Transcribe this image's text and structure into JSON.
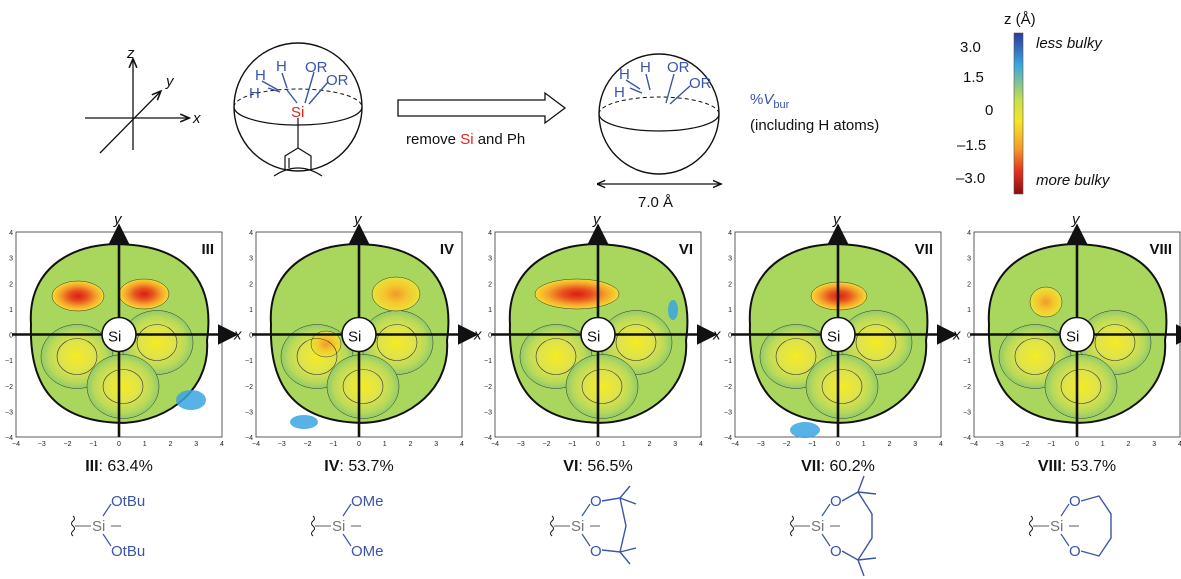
{
  "top": {
    "axes": {
      "x": "x",
      "y": "y",
      "z": "z"
    },
    "sphere1": {
      "h_labels": [
        "H",
        "H",
        "H"
      ],
      "or_labels": [
        "OR",
        "OR"
      ],
      "si": "Si"
    },
    "arrow": {
      "prefix": "remove ",
      "si": "Si",
      "suffix": " and Ph"
    },
    "sphere2": {
      "h_labels": [
        "H",
        "H",
        "H"
      ],
      "or_labels": [
        "OR",
        "OR"
      ],
      "dimension": "7.0 Å"
    },
    "vbur": {
      "pct": "%",
      "v": "V",
      "sub": "bur",
      "note": "(including H atoms)"
    },
    "colorbar": {
      "title": "z (Å)",
      "ticks": [
        "3.0",
        "1.5",
        "0",
        "–1.5",
        "–3.0"
      ],
      "less": "less bulky",
      "more": "more bulky",
      "colors": [
        "#2b3a9b",
        "#3aa6e0",
        "#c8e04a",
        "#f5e62a",
        "#f29a2a",
        "#e0321e",
        "#8b0d0d"
      ]
    }
  },
  "maps": [
    {
      "id": "III",
      "value": "63.4%",
      "substituents": [
        "OtBu",
        "OtBu"
      ]
    },
    {
      "id": "IV",
      "value": "53.7%",
      "substituents": [
        "OMe",
        "OMe"
      ]
    },
    {
      "id": "VI",
      "value": "56.5%",
      "substituents": [
        "O",
        "O"
      ]
    },
    {
      "id": "VII",
      "value": "60.2%",
      "substituents": [
        "O",
        "O"
      ]
    },
    {
      "id": "VIII",
      "value": "53.7%",
      "substituents": [
        "O",
        "O"
      ]
    }
  ],
  "map_common": {
    "si_label": "Si",
    "x_label": "x",
    "y_label": "y",
    "ticks": [
      "−4",
      "−3",
      "−2",
      "−1",
      "0",
      "1",
      "2",
      "3",
      "4"
    ],
    "y_ticks": [
      "4",
      "3",
      "2",
      "1",
      "0",
      "−1",
      "−2",
      "−3",
      "−4"
    ]
  },
  "structures": {
    "si": "Si"
  }
}
